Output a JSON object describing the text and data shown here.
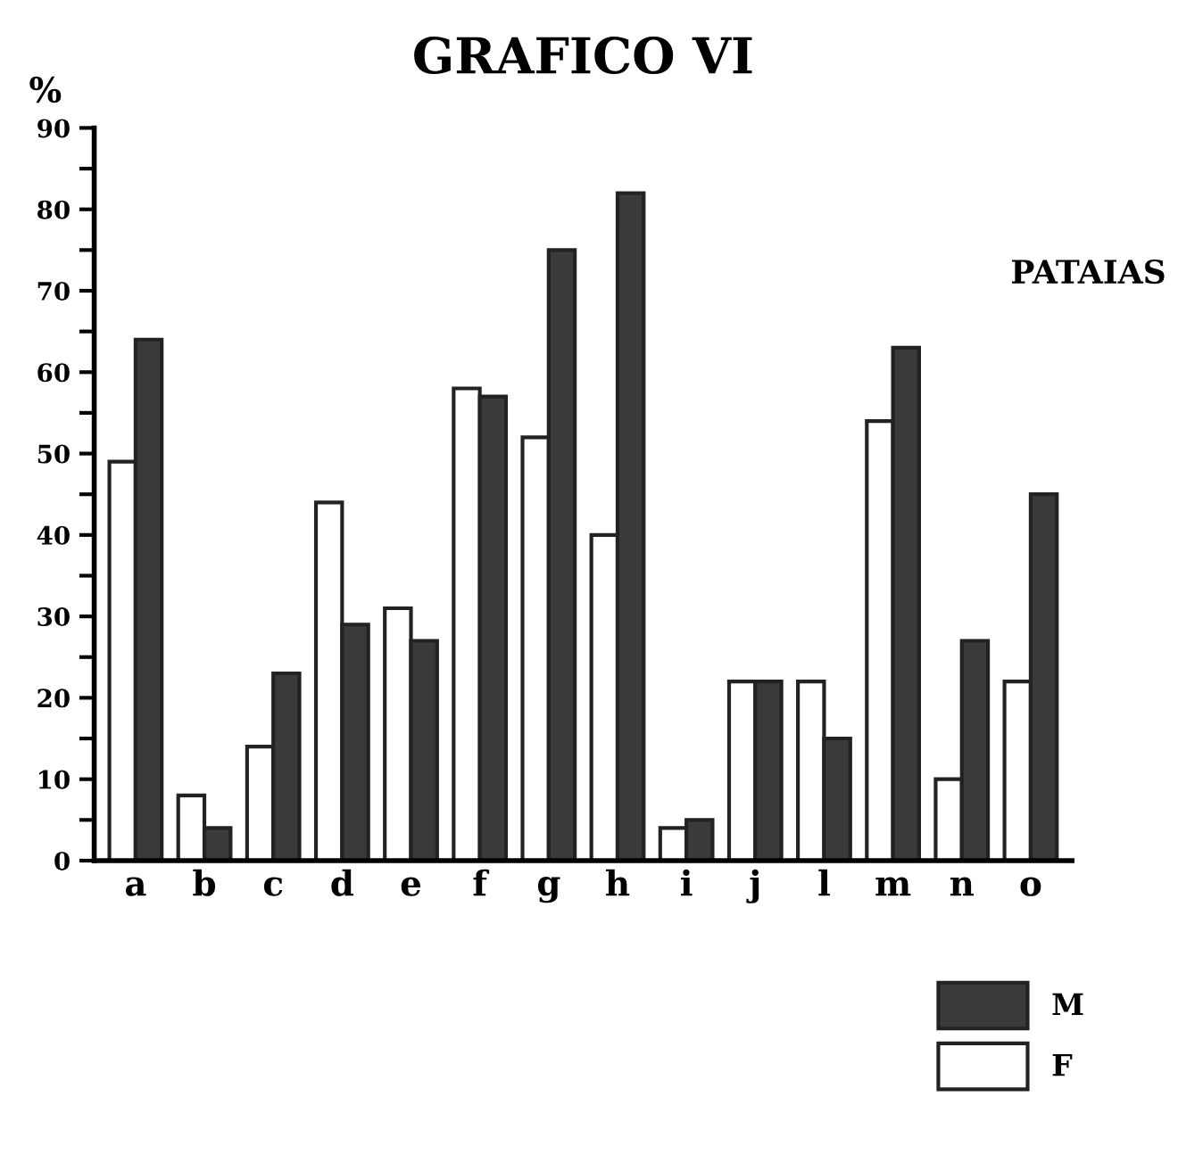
{
  "chart_data": {
    "type": "bar",
    "title": "GRAFICO VI",
    "ylabel": "%",
    "annotations": [
      "PATAIAS"
    ],
    "categories": [
      "a",
      "b",
      "c",
      "d",
      "e",
      "f",
      "g",
      "h",
      "i",
      "j",
      "l",
      "m",
      "n",
      "o"
    ],
    "series": [
      {
        "name": "F",
        "color": "#ffffff",
        "values": [
          49,
          8,
          14,
          44,
          31,
          58,
          52,
          40,
          4,
          22,
          22,
          54,
          10,
          22
        ]
      },
      {
        "name": "M",
        "color": "#3a3a3a",
        "values": [
          64,
          4,
          23,
          29,
          27,
          57,
          75,
          82,
          5,
          22,
          15,
          63,
          27,
          45
        ]
      }
    ],
    "ylim": [
      0,
      90
    ],
    "yticks": [
      0,
      {
        "value": 5,
        "label": null
      },
      10,
      {
        "value": 15,
        "label": null
      },
      20,
      {
        "value": 25,
        "label": null
      },
      30,
      {
        "value": 35,
        "label": null
      },
      40,
      {
        "value": 45,
        "label": null
      },
      50,
      {
        "value": 55,
        "label": null
      },
      60,
      {
        "value": 65,
        "label": null
      },
      70,
      {
        "value": 75,
        "label": null
      },
      80,
      {
        "value": 85,
        "label": null
      },
      90
    ],
    "grid": false,
    "legend": "bottom right"
  }
}
